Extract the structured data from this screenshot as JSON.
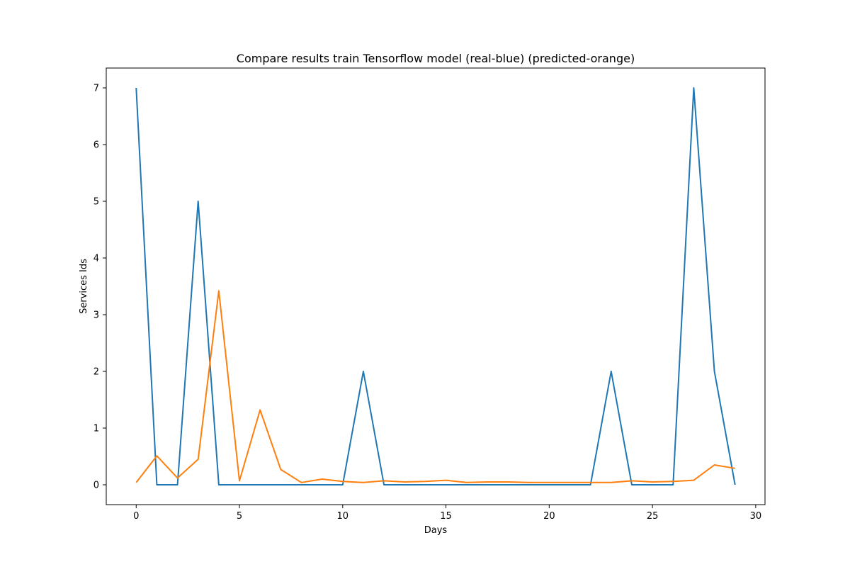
{
  "chart_data": {
    "type": "line",
    "title": "Compare results train Tensorflow model (real-blue) (predicted-orange)",
    "xlabel": "Days",
    "ylabel": "Services Ids",
    "xlim": [
      -1.45,
      30.45
    ],
    "ylim": [
      -0.35,
      7.35
    ],
    "xticks": [
      0,
      5,
      10,
      15,
      20,
      25,
      30
    ],
    "yticks": [
      0,
      1,
      2,
      3,
      4,
      5,
      6,
      7
    ],
    "grid": false,
    "legend": "none",
    "x": [
      0,
      1,
      2,
      3,
      4,
      5,
      6,
      7,
      8,
      9,
      10,
      11,
      12,
      13,
      14,
      15,
      16,
      17,
      18,
      19,
      20,
      21,
      22,
      23,
      24,
      25,
      26,
      27,
      28,
      29
    ],
    "series": [
      {
        "color": "#1f77b4",
        "values": [
          7,
          0,
          0,
          5,
          0,
          0,
          0,
          0,
          0,
          0,
          0,
          2,
          0,
          0,
          0,
          0,
          0,
          0,
          0,
          0,
          0,
          0,
          0,
          2,
          0,
          0,
          0,
          7,
          2,
          0
        ]
      },
      {
        "color": "#ff7f0e",
        "values": [
          0.04,
          0.51,
          0.12,
          0.45,
          3.42,
          0.07,
          1.32,
          0.27,
          0.04,
          0.1,
          0.06,
          0.04,
          0.07,
          0.05,
          0.06,
          0.08,
          0.04,
          0.05,
          0.05,
          0.04,
          0.04,
          0.04,
          0.04,
          0.04,
          0.07,
          0.05,
          0.06,
          0.08,
          0.35,
          0.29
        ]
      }
    ]
  }
}
